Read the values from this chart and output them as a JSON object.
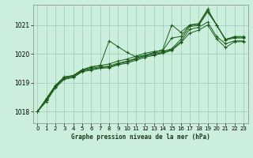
{
  "title": "Graphe pression niveau de la mer (hPa)",
  "bg_color": "#cceedd",
  "line_color": "#1a5c1a",
  "xlim": [
    -0.5,
    23.5
  ],
  "ylim": [
    1017.6,
    1021.7
  ],
  "xticks": [
    0,
    1,
    2,
    3,
    4,
    5,
    6,
    7,
    8,
    9,
    10,
    11,
    12,
    13,
    14,
    15,
    16,
    17,
    18,
    19,
    20,
    21,
    22,
    23
  ],
  "yticks": [
    1018,
    1019,
    1020,
    1021
  ],
  "series": [
    [
      1018.0,
      1018.45,
      1018.9,
      1019.2,
      1019.25,
      1019.45,
      1019.55,
      1019.6,
      1020.45,
      1020.25,
      1020.05,
      1019.9,
      1019.95,
      1020.05,
      1020.15,
      1021.0,
      1020.75,
      1021.0,
      1021.05,
      1021.55,
      1021.0,
      1020.5,
      1020.6,
      1020.6
    ],
    [
      1018.0,
      1018.45,
      1018.9,
      1019.2,
      1019.25,
      1019.45,
      1019.55,
      1019.6,
      1019.65,
      1019.75,
      1019.82,
      1019.92,
      1020.02,
      1020.08,
      1020.12,
      1020.55,
      1020.6,
      1021.0,
      1021.02,
      1021.5,
      1021.0,
      1020.5,
      1020.58,
      1020.58
    ],
    [
      1018.0,
      1018.42,
      1018.88,
      1019.18,
      1019.23,
      1019.43,
      1019.5,
      1019.55,
      1019.58,
      1019.68,
      1019.75,
      1019.85,
      1019.95,
      1020.02,
      1020.08,
      1020.18,
      1020.5,
      1020.95,
      1020.98,
      1021.45,
      1021.0,
      1020.48,
      1020.55,
      1020.55
    ],
    [
      1018.0,
      1018.38,
      1018.85,
      1019.15,
      1019.2,
      1019.4,
      1019.47,
      1019.52,
      1019.55,
      1019.65,
      1019.72,
      1019.82,
      1019.92,
      1019.98,
      1020.05,
      1020.15,
      1020.42,
      1020.85,
      1020.92,
      1021.1,
      1020.6,
      1020.35,
      1020.45,
      1020.45
    ],
    [
      1018.0,
      1018.35,
      1018.82,
      1019.12,
      1019.18,
      1019.38,
      1019.44,
      1019.5,
      1019.52,
      1019.62,
      1019.68,
      1019.78,
      1019.88,
      1019.95,
      1020.02,
      1020.12,
      1020.38,
      1020.72,
      1020.82,
      1021.0,
      1020.52,
      1020.22,
      1020.42,
      1020.42
    ]
  ]
}
